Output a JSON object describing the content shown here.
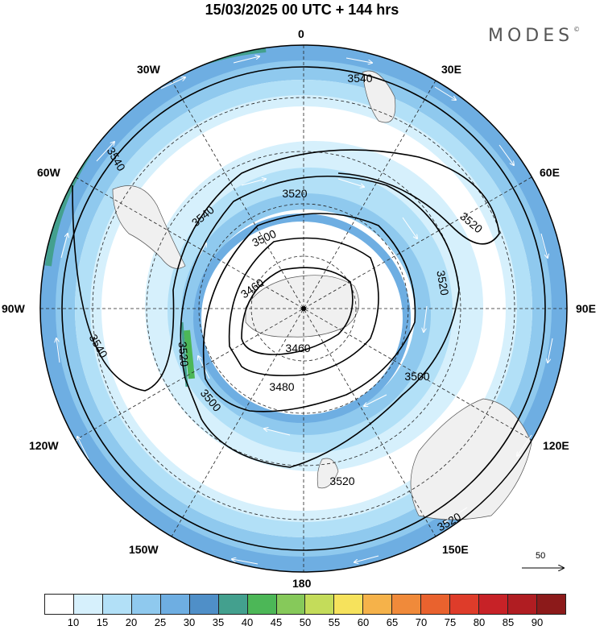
{
  "title": "15/03/2025  00 UTC  + 144 hrs",
  "brand": {
    "name": "MODES",
    "mark": "©"
  },
  "longitude_labels": {
    "top": "0",
    "bottom": "180",
    "left": "90W",
    "right": "90E",
    "w30": "30W",
    "e30": "30E",
    "w60": "60W",
    "e60": "60E",
    "w120": "120W",
    "e120": "120E",
    "w150": "150W",
    "e150": "150E"
  },
  "contour_labels": [
    "3540",
    "3540",
    "3540",
    "3540",
    "3520",
    "3520",
    "3520",
    "3520",
    "3520",
    "3520",
    "3500",
    "3500",
    "3500",
    "3480",
    "3460",
    "3460"
  ],
  "vector_scale": {
    "value": "50"
  },
  "colorbar": {
    "ticks": [
      "10",
      "15",
      "20",
      "25",
      "30",
      "35",
      "40",
      "45",
      "50",
      "55",
      "60",
      "65",
      "70",
      "75",
      "80",
      "85",
      "90"
    ],
    "colors": [
      "#ffffff",
      "#d6f0fc",
      "#b2e0f7",
      "#8fc9ee",
      "#6eaee2",
      "#4f8fc8",
      "#43a08e",
      "#4cb757",
      "#86c95a",
      "#c4dc5a",
      "#f6e25c",
      "#f5b24a",
      "#f08a3a",
      "#e9622e",
      "#de3c2a",
      "#c72227",
      "#b01d22",
      "#8c1a1a"
    ]
  },
  "map": {
    "projection": "south-polar-stereographic",
    "field": "wind speed (shaded), wind vectors, geopotential height contours"
  }
}
